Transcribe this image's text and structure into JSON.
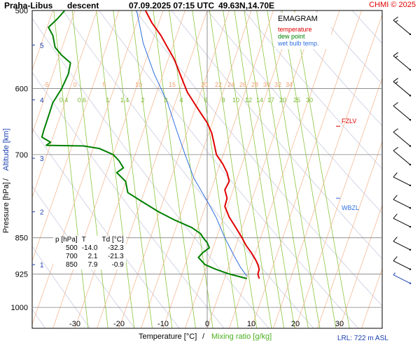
{
  "header": {
    "station": "Praha-Libus",
    "mode": "descent",
    "datetime": "07.09.2025 07:15 UTC",
    "coords": "49.63N,14.70E",
    "credit": "CHMI © 2025"
  },
  "legend": {
    "title": "EMAGRAM",
    "items": [
      {
        "label": "temperature",
        "color": "#e00000"
      },
      {
        "label": "dew point",
        "color": "#008000"
      },
      {
        "label": "wet bulb temp.",
        "color": "#2f6fdf"
      }
    ]
  },
  "axes": {
    "ylabel_left": "Pressure [hPa]",
    "ylabel_sep": "/",
    "ylabel_right": "Altitude [km]",
    "xlabel_left": "Temperature [°C]",
    "xlabel_sep": "/",
    "xlabel_right": "Mixing ratio [g/kg]",
    "pressure_ticks": [
      500,
      600,
      700,
      850,
      925,
      1000
    ],
    "temp_ticks": [
      -30,
      -20,
      -10,
      0,
      10,
      20,
      30
    ],
    "altitude_ticks": [
      {
        "label": "5",
        "p": 542
      },
      {
        "label": "4",
        "p": 616
      },
      {
        "label": "3",
        "p": 706
      },
      {
        "label": "2",
        "p": 800
      },
      {
        "label": "1",
        "p": 905
      }
    ]
  },
  "isotherm_labels": [
    "-5",
    "0",
    "5",
    "10",
    "15",
    "20",
    "22",
    "24",
    "26",
    "28",
    "30",
    "32",
    "34"
  ],
  "mixing_ratio_labels": [
    "0.4",
    "0.6",
    "1",
    "1.4",
    "2",
    "3",
    "4",
    "6",
    "8",
    "10",
    "12",
    "14",
    "17",
    "20",
    "25",
    "30"
  ],
  "levels": {
    "fzlv": "FZLV",
    "wbzl": "WBZL"
  },
  "stats_table": {
    "headers": [
      "p [hPa]",
      "T",
      "Td [°C]"
    ],
    "rows": [
      [
        "500",
        "-14.0",
        "-32.3"
      ],
      [
        "700",
        "2.1",
        "-21.3"
      ],
      [
        "850",
        "7.9",
        "-0.9"
      ]
    ]
  },
  "lrl": "LRL: 722 m ASL",
  "colors": {
    "temperature": "#e00000",
    "dewpoint": "#008000",
    "wetbulb": "#2f6fdf",
    "isotherm": "#f5b18a",
    "mixing_ratio": "#8cc63f",
    "dry_adiabat": "#c8cce0",
    "grid": "#808080",
    "barb_surface": "#1a3fb0"
  },
  "chart_data": {
    "type": "line",
    "title": "Praha-Libus descent 07.09.2025 07:15 UTC 49.63N,14.70E",
    "xlabel": "Temperature [°C] / Mixing ratio [g/kg]",
    "ylabel": "Pressure [hPa] / Altitude [km]",
    "xlim": [
      -40,
      40
    ],
    "ylim": [
      500,
      1050
    ],
    "y_scale": "log",
    "legend": "top-right",
    "series": [
      {
        "name": "temperature",
        "points": [
          [
            -14.0,
            500
          ],
          [
            -12.5,
            515
          ],
          [
            -10.5,
            530
          ],
          [
            -9.0,
            545
          ],
          [
            -7.5,
            560
          ],
          [
            -6.5,
            575
          ],
          [
            -5.5,
            590
          ],
          [
            -4.5,
            605
          ],
          [
            -3.0,
            620
          ],
          [
            -1.5,
            635
          ],
          [
            0.0,
            650
          ],
          [
            1.0,
            665
          ],
          [
            1.5,
            680
          ],
          [
            2.1,
            700
          ],
          [
            3.5,
            715
          ],
          [
            4.5,
            730
          ],
          [
            5.0,
            745
          ],
          [
            4.0,
            760
          ],
          [
            4.5,
            775
          ],
          [
            4.0,
            790
          ],
          [
            5.0,
            810
          ],
          [
            6.5,
            830
          ],
          [
            7.9,
            850
          ],
          [
            8.8,
            865
          ],
          [
            10.0,
            880
          ],
          [
            11.0,
            895
          ],
          [
            11.5,
            905
          ],
          [
            11.8,
            915
          ],
          [
            11.5,
            925
          ],
          [
            11.8,
            935
          ]
        ]
      },
      {
        "name": "dew point",
        "points": [
          [
            -32.3,
            500
          ],
          [
            -34.0,
            510
          ],
          [
            -36.0,
            520
          ],
          [
            -35.0,
            530
          ],
          [
            -34.5,
            545
          ],
          [
            -33.0,
            555
          ],
          [
            -31.0,
            565
          ],
          [
            -31.5,
            580
          ],
          [
            -33.0,
            600
          ],
          [
            -35.0,
            620
          ],
          [
            -36.0,
            640
          ],
          [
            -37.0,
            660
          ],
          [
            -37.5,
            672
          ],
          [
            -35.5,
            680
          ],
          [
            -36.5,
            685
          ],
          [
            -28.0,
            686
          ],
          [
            -24.5,
            690
          ],
          [
            -21.3,
            700
          ],
          [
            -20.0,
            710
          ],
          [
            -19.0,
            722
          ],
          [
            -20.5,
            730
          ],
          [
            -18.5,
            745
          ],
          [
            -18.0,
            765
          ],
          [
            -15.0,
            780
          ],
          [
            -11.0,
            800
          ],
          [
            -7.5,
            815
          ],
          [
            -3.5,
            830
          ],
          [
            -1.5,
            842
          ],
          [
            -0.9,
            850
          ],
          [
            0.0,
            860
          ],
          [
            0.5,
            870
          ],
          [
            -1.0,
            880
          ],
          [
            -2.0,
            890
          ],
          [
            -0.5,
            905
          ],
          [
            2.0,
            915
          ],
          [
            5.0,
            925
          ],
          [
            9.0,
            935
          ]
        ]
      },
      {
        "name": "wet bulb temp.",
        "points": [
          [
            -16.0,
            500
          ],
          [
            -14.5,
            540
          ],
          [
            -12.0,
            580
          ],
          [
            -9.0,
            620
          ],
          [
            -7.0,
            660
          ],
          [
            -5.0,
            700
          ],
          [
            -3.0,
            740
          ],
          [
            0.0,
            780
          ],
          [
            2.0,
            810
          ],
          [
            4.0,
            850
          ],
          [
            6.0,
            885
          ],
          [
            7.5,
            910
          ],
          [
            9.0,
            930
          ]
        ]
      }
    ],
    "wind_barbs": [
      {
        "p": 520,
        "speed": 15
      },
      {
        "p": 565,
        "speed": 15
      },
      {
        "p": 600,
        "speed": 15
      },
      {
        "p": 635,
        "speed": 10
      },
      {
        "p": 675,
        "speed": 10
      },
      {
        "p": 705,
        "speed": 10
      },
      {
        "p": 740,
        "speed": 10
      },
      {
        "p": 780,
        "speed": 10
      },
      {
        "p": 815,
        "speed": 10
      },
      {
        "p": 860,
        "speed": 10
      },
      {
        "p": 900,
        "speed": 10
      },
      {
        "p": 930,
        "speed": 5
      }
    ]
  }
}
